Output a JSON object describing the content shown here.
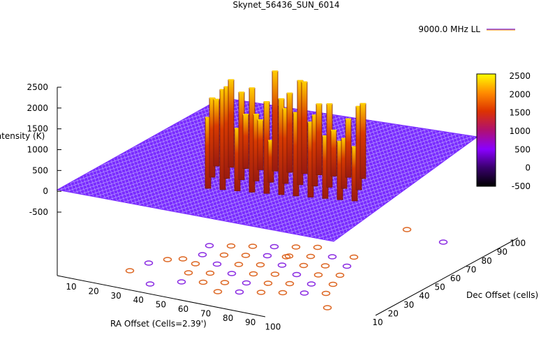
{
  "chart_data": {
    "type": "surface3d",
    "title": "Skynet_56436_SUN_6014",
    "legend": {
      "label": "9000.0 MHz LL",
      "position": "top-right"
    },
    "xlabel": "RA Offset (Cells=2.39')",
    "ylabel": "Dec Offset (cells)",
    "zlabel": "Intensity (K)",
    "x_ticks": [
      "10",
      "20",
      "30",
      "40",
      "50",
      "60",
      "70",
      "80",
      "90",
      "100"
    ],
    "y_ticks": [
      "10",
      "20",
      "30",
      "40",
      "50",
      "60",
      "70",
      "80",
      "90",
      "100"
    ],
    "z_ticks": [
      "2500",
      "2000",
      "1500",
      "1000",
      "500",
      "0",
      "-500"
    ],
    "zlim": [
      -500,
      2500
    ],
    "colorbar": {
      "ticks": [
        "2500",
        "2000",
        "1500",
        "1000",
        "500",
        "0",
        "-500"
      ],
      "range": [
        -500,
        2500
      ]
    },
    "colors": {
      "surface": "#7a2cff",
      "peak_low": "#cc2a00",
      "peak_high": "#ffcc00",
      "contour_low": "#8a2be2",
      "contour_high": "#dd6622"
    },
    "peak_z": [
      1700,
      2400,
      1500,
      2500,
      2200,
      2300,
      2000,
      1800,
      1500,
      1400,
      1300,
      1900,
      2200,
      2100,
      1600,
      1000,
      1800,
      2500,
      1700,
      2000,
      1200,
      2000,
      1600,
      2100,
      1300,
      1200,
      2400,
      1900,
      2200,
      1700,
      1100,
      1400,
      1800
    ]
  }
}
